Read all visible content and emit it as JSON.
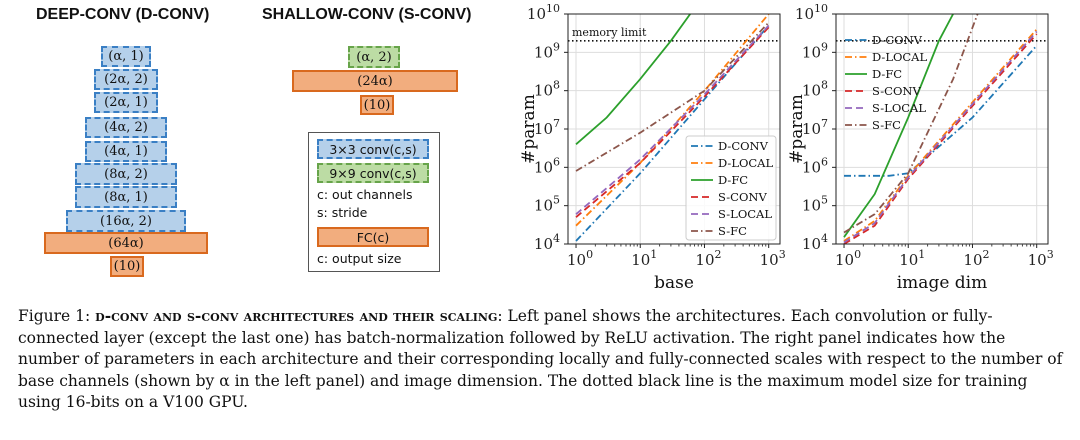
{
  "left_panel": {
    "deep_title": "DEEP-CONV (D-CONV)",
    "shallow_title": "SHALLOW-CONV (S-CONV)",
    "deep_blocks": [
      "(α, 1)",
      "(2α, 2)",
      "(2α, 1)",
      "(4α, 2)",
      "(4α, 1)",
      "(8α, 2)",
      "(8α, 1)",
      "(16α, 2)",
      "(64α)",
      "(10)"
    ],
    "shallow_blocks": [
      "(α, 2)",
      "(24α)",
      "(10)"
    ],
    "legend": {
      "conv3": "3×3 conv(c,s)",
      "conv9": "9×9 conv(c,s)",
      "c_desc": "c: out channels",
      "s_desc": "s: stride",
      "fc": "FC(c)",
      "c_out": "c: output size"
    }
  },
  "colors": {
    "conv3_fill": "#b5d0ea",
    "conv3_edge": "#3a7fc4",
    "conv9_fill": "#bcdca4",
    "conv9_edge": "#67a44a",
    "fc_fill": "#f2ad7e",
    "fc_edge": "#d9691e"
  },
  "chart_data": [
    {
      "type": "line",
      "xlabel": "base",
      "ylabel": "#param",
      "x_scale": "log",
      "y_scale": "log",
      "xlim": [
        1,
        1000
      ],
      "ylim": [
        10000,
        10000000000
      ],
      "x_ticks": [
        "10^0",
        "10^1",
        "10^2",
        "10^3"
      ],
      "y_ticks": [
        "10^4",
        "10^5",
        "10^6",
        "10^7",
        "10^8",
        "10^9",
        "10^10"
      ],
      "grid": true,
      "legend_position": "lower-right",
      "annotation": {
        "text": "memory limit",
        "y": 2000000000
      },
      "series": [
        {
          "name": "D-CONV",
          "color": "#1f77b4",
          "dash": "dashdot",
          "x": [
            1,
            10,
            100,
            1000
          ],
          "y": [
            12000,
            700000,
            60000000,
            5000000000
          ]
        },
        {
          "name": "D-LOCAL",
          "color": "#ff7f0e",
          "dash": "dashdot",
          "x": [
            1,
            10,
            100,
            1000
          ],
          "y": [
            30000,
            1300000,
            100000000,
            10000000000
          ]
        },
        {
          "name": "D-FC",
          "color": "#2ca02c",
          "dash": "solid",
          "x": [
            1,
            3,
            10,
            30,
            60
          ],
          "y": [
            4000000,
            20000000,
            200000000,
            2000000000,
            10000000000
          ]
        },
        {
          "name": "S-CONV",
          "color": "#d62728",
          "dash": "dashed",
          "x": [
            1,
            10,
            100,
            1000
          ],
          "y": [
            50000,
            1300000,
            70000000,
            4500000000
          ]
        },
        {
          "name": "S-LOCAL",
          "color": "#9467bd",
          "dash": "dashed",
          "x": [
            1,
            10,
            100,
            1000
          ],
          "y": [
            60000,
            1600000,
            80000000,
            5000000000
          ]
        },
        {
          "name": "S-FC",
          "color": "#8c564b",
          "dash": "dashdot",
          "x": [
            1,
            10,
            100,
            1000
          ],
          "y": [
            800000,
            8000000,
            100000000,
            6000000000
          ]
        }
      ]
    },
    {
      "type": "line",
      "xlabel": "image dim",
      "ylabel": "#param",
      "x_scale": "log",
      "y_scale": "log",
      "xlim": [
        1,
        1000
      ],
      "ylim": [
        10000,
        10000000000
      ],
      "x_ticks": [
        "10^0",
        "10^1",
        "10^2",
        "10^3"
      ],
      "y_ticks": [
        "10^4",
        "10^5",
        "10^6",
        "10^7",
        "10^8",
        "10^9",
        "10^10"
      ],
      "grid": true,
      "legend_position": "upper-left",
      "annotation": {
        "text": "",
        "y": 2000000000
      },
      "series": [
        {
          "name": "D-CONV",
          "color": "#1f77b4",
          "dash": "dashdot",
          "x": [
            1,
            5,
            10,
            100,
            1000
          ],
          "y": [
            600000,
            600000,
            700000,
            20000000,
            1500000000
          ]
        },
        {
          "name": "D-LOCAL",
          "color": "#ff7f0e",
          "dash": "dashdot",
          "x": [
            1,
            3,
            10,
            100,
            1000
          ],
          "y": [
            12000,
            40000,
            600000,
            50000000,
            4000000000
          ]
        },
        {
          "name": "D-FC",
          "color": "#2ca02c",
          "dash": "solid",
          "x": [
            1,
            3,
            10,
            30,
            50
          ],
          "y": [
            15000,
            200000,
            20000000,
            2000000000,
            10000000000
          ]
        },
        {
          "name": "S-CONV",
          "color": "#d62728",
          "dash": "dashed",
          "x": [
            1,
            3,
            10,
            100,
            1000
          ],
          "y": [
            10000,
            30000,
            500000,
            40000000,
            3000000000
          ]
        },
        {
          "name": "S-LOCAL",
          "color": "#9467bd",
          "dash": "dashed",
          "x": [
            1,
            3,
            10,
            100,
            1000
          ],
          "y": [
            11000,
            35000,
            550000,
            45000000,
            3500000000
          ]
        },
        {
          "name": "S-FC",
          "color": "#8c564b",
          "dash": "dashdot",
          "x": [
            1,
            3,
            10,
            50,
            120
          ],
          "y": [
            20000,
            60000,
            700000,
            200000000,
            10000000000
          ]
        }
      ]
    }
  ],
  "caption": {
    "figure_label": "Figure 1:",
    "title_bold": "d-conv and s-conv architectures and their scaling",
    "body": ": Left panel shows the architectures. Each convolution or fully-connected layer (except the last one) has batch-normalization followed by ReLU activation. The right panel indicates how the number of parameters in each architecture and their corresponding locally and fully-connected scales with respect to the number of base channels (shown by α in the left panel) and image dimension. The dotted black line is the maximum model size for training using 16-bits on a V100 GPU."
  }
}
